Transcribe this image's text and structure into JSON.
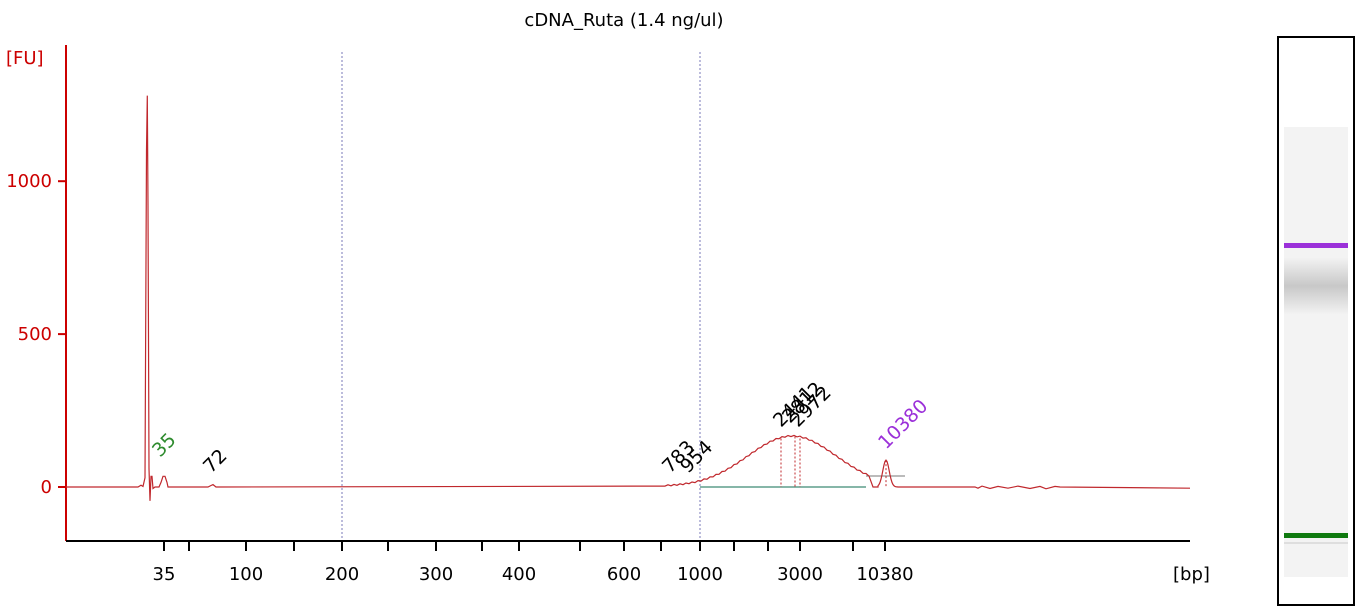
{
  "chart_data": {
    "type": "line",
    "title": "cDNA_Ruta (1.4 ng/ul)",
    "ylabel": "[FU]",
    "xlabel": "[bp]",
    "ylim": [
      -170,
      1450
    ],
    "y_ticks": [
      0,
      500,
      1000
    ],
    "x_tick_labels": [
      "35",
      "100",
      "200",
      "300",
      "400",
      "600",
      "1000",
      "3000",
      "10380"
    ],
    "series": [
      {
        "values": [
          {
            "x": "lower marker region",
            "y": 1280
          },
          {
            "x": "35",
            "y": 35
          },
          {
            "x": "72",
            "y": 8
          },
          {
            "x": "783",
            "y": 5
          },
          {
            "x": "954",
            "y": 15
          },
          {
            "x": "2441",
            "y": 160
          },
          {
            "x": "2812",
            "y": 165
          },
          {
            "x": "2972",
            "y": 160
          },
          {
            "x": "10380",
            "y": 88
          }
        ]
      }
    ],
    "peak_labels": [
      {
        "text": "35",
        "color": "#2e8b2e"
      },
      {
        "text": "72",
        "color": "#000000"
      },
      {
        "text": "783",
        "color": "#000000"
      },
      {
        "text": "954",
        "color": "#000000"
      },
      {
        "text": "2441",
        "color": "#000000"
      },
      {
        "text": "2812",
        "color": "#000000"
      },
      {
        "text": "2972",
        "color": "#000000"
      },
      {
        "text": "10380",
        "color": "#9b30d9"
      }
    ],
    "colors": {
      "trace": "#c0282d",
      "axis": "#cc0000",
      "lower_marker": "#2e8b2e",
      "upper_marker": "#9b30d9"
    }
  },
  "gel": {
    "bands": [
      "upper marker",
      "sample smear",
      "lower marker"
    ],
    "colors": {
      "upper_marker": "#9b30d9",
      "lower_marker": "#0f7a0f"
    }
  }
}
